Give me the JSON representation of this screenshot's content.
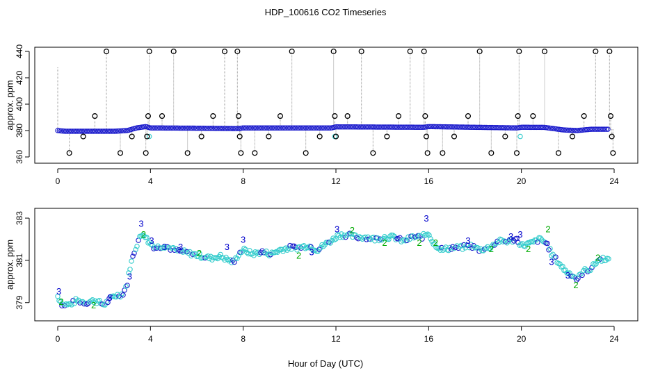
{
  "figure": {
    "title": "HDP_100616  CO2 Timeseries",
    "xlabel": "Hour of Day (UTC)"
  },
  "colors": {
    "flagged": "#000000",
    "main": "#1a1acc",
    "alt": "#33cccc",
    "label3": "#0000cc",
    "label2": "#00aa00",
    "connector": "#999999"
  },
  "chart_data": [
    {
      "type": "scatter",
      "ylabel": "approx. ppm",
      "xlim": [
        0,
        24
      ],
      "ylim": [
        360,
        440
      ],
      "xticks": [
        0,
        4,
        8,
        12,
        16,
        20,
        24
      ],
      "yticks": [
        360,
        380,
        400,
        420,
        440
      ],
      "xtick_labels": [
        "0",
        "4",
        "8",
        "12",
        "16",
        "20",
        "24"
      ],
      "ytick_labels": [
        "360",
        "380",
        "400",
        "420",
        "440"
      ],
      "grid": false,
      "baseline": {
        "description_points_hour_ppm": [
          [
            0.0,
            380
          ],
          [
            0.3,
            379.5
          ],
          [
            2.5,
            379.5
          ],
          [
            3.0,
            380
          ],
          [
            3.4,
            382
          ],
          [
            3.8,
            383
          ],
          [
            4.0,
            382
          ],
          [
            6.0,
            381.8
          ],
          [
            7.8,
            381.5
          ],
          [
            8.0,
            382
          ],
          [
            11.8,
            382
          ],
          [
            12.0,
            382.8
          ],
          [
            15.8,
            382.5
          ],
          [
            16.0,
            383
          ],
          [
            19.8,
            382
          ],
          [
            20.0,
            382.5
          ],
          [
            21.0,
            382.4
          ],
          [
            21.8,
            380.5
          ],
          [
            22.4,
            380
          ],
          [
            23.0,
            381
          ],
          [
            23.8,
            381
          ]
        ]
      },
      "flagged_points": [
        {
          "x": 0.5,
          "y": 363
        },
        {
          "x": 1.1,
          "y": 375.5
        },
        {
          "x": 1.6,
          "y": 391
        },
        {
          "x": 2.1,
          "y": 440
        },
        {
          "x": 2.7,
          "y": 363
        },
        {
          "x": 3.2,
          "y": 375.5
        },
        {
          "x": 3.8,
          "y": 363
        },
        {
          "x": 3.85,
          "y": 375.5
        },
        {
          "x": 3.9,
          "y": 391
        },
        {
          "x": 3.95,
          "y": 440
        },
        {
          "x": 4.5,
          "y": 391
        },
        {
          "x": 5.0,
          "y": 440
        },
        {
          "x": 5.6,
          "y": 363
        },
        {
          "x": 6.2,
          "y": 375.5
        },
        {
          "x": 6.7,
          "y": 391
        },
        {
          "x": 7.2,
          "y": 440
        },
        {
          "x": 7.75,
          "y": 440
        },
        {
          "x": 7.8,
          "y": 391
        },
        {
          "x": 7.85,
          "y": 375.5
        },
        {
          "x": 7.9,
          "y": 363
        },
        {
          "x": 8.5,
          "y": 363
        },
        {
          "x": 9.1,
          "y": 375.5
        },
        {
          "x": 9.6,
          "y": 391
        },
        {
          "x": 10.1,
          "y": 440
        },
        {
          "x": 10.7,
          "y": 363
        },
        {
          "x": 11.3,
          "y": 375.5
        },
        {
          "x": 11.9,
          "y": 440
        },
        {
          "x": 11.95,
          "y": 391
        },
        {
          "x": 12.0,
          "y": 375.5
        },
        {
          "x": 12.5,
          "y": 391
        },
        {
          "x": 13.1,
          "y": 440
        },
        {
          "x": 13.6,
          "y": 363
        },
        {
          "x": 14.2,
          "y": 375.5
        },
        {
          "x": 14.7,
          "y": 391
        },
        {
          "x": 15.2,
          "y": 440
        },
        {
          "x": 15.8,
          "y": 440
        },
        {
          "x": 15.85,
          "y": 391
        },
        {
          "x": 15.9,
          "y": 375.5
        },
        {
          "x": 15.95,
          "y": 363
        },
        {
          "x": 16.6,
          "y": 363
        },
        {
          "x": 17.1,
          "y": 375.5
        },
        {
          "x": 17.7,
          "y": 391
        },
        {
          "x": 18.2,
          "y": 440
        },
        {
          "x": 18.7,
          "y": 363
        },
        {
          "x": 19.3,
          "y": 375.5
        },
        {
          "x": 19.8,
          "y": 363
        },
        {
          "x": 19.85,
          "y": 391
        },
        {
          "x": 19.9,
          "y": 440
        },
        {
          "x": 20.5,
          "y": 391
        },
        {
          "x": 21.0,
          "y": 440
        },
        {
          "x": 21.6,
          "y": 363
        },
        {
          "x": 22.2,
          "y": 375.5
        },
        {
          "x": 22.7,
          "y": 391
        },
        {
          "x": 23.2,
          "y": 440
        },
        {
          "x": 23.8,
          "y": 440
        },
        {
          "x": 23.85,
          "y": 391
        },
        {
          "x": 23.9,
          "y": 375.5
        },
        {
          "x": 23.95,
          "y": 363
        }
      ]
    },
    {
      "type": "scatter",
      "ylabel": "approx. ppm",
      "xlim": [
        0,
        24
      ],
      "ylim": [
        378.4,
        383.2
      ],
      "xticks": [
        0,
        4,
        8,
        12,
        16,
        20,
        24
      ],
      "yticks": [
        379,
        381,
        383
      ],
      "xtick_labels": [
        "0",
        "4",
        "8",
        "12",
        "16",
        "20",
        "24"
      ],
      "ytick_labels": [
        "379",
        "381",
        "383"
      ],
      "grid": false,
      "series_points_hour_ppm": [
        [
          0.0,
          379.3
        ],
        [
          0.1,
          379.1
        ],
        [
          0.2,
          378.9
        ],
        [
          0.5,
          378.9
        ],
        [
          0.8,
          379.1
        ],
        [
          1.2,
          379.0
        ],
        [
          1.6,
          379.1
        ],
        [
          2.0,
          378.9
        ],
        [
          2.4,
          379.3
        ],
        [
          2.8,
          379.4
        ],
        [
          3.0,
          379.9
        ],
        [
          3.1,
          380.6
        ],
        [
          3.3,
          381.4
        ],
        [
          3.5,
          382.0
        ],
        [
          3.7,
          382.3
        ],
        [
          3.9,
          381.9
        ],
        [
          4.2,
          381.6
        ],
        [
          4.6,
          381.7
        ],
        [
          5.0,
          381.5
        ],
        [
          5.4,
          381.4
        ],
        [
          5.8,
          381.3
        ],
        [
          6.2,
          381.2
        ],
        [
          6.6,
          381.1
        ],
        [
          7.0,
          381.2
        ],
        [
          7.4,
          381.0
        ],
        [
          7.6,
          380.9
        ],
        [
          7.8,
          381.3
        ],
        [
          8.0,
          381.5
        ],
        [
          8.4,
          381.3
        ],
        [
          8.8,
          381.4
        ],
        [
          9.2,
          381.3
        ],
        [
          9.6,
          381.5
        ],
        [
          10.0,
          381.6
        ],
        [
          10.4,
          381.6
        ],
        [
          10.8,
          381.7
        ],
        [
          11.2,
          381.5
        ],
        [
          11.6,
          381.8
        ],
        [
          11.9,
          382.0
        ],
        [
          12.1,
          382.2
        ],
        [
          12.5,
          382.2
        ],
        [
          12.9,
          382.1
        ],
        [
          13.3,
          382.1
        ],
        [
          13.7,
          382.0
        ],
        [
          14.1,
          382.1
        ],
        [
          14.5,
          382.1
        ],
        [
          14.9,
          381.9
        ],
        [
          15.3,
          382.1
        ],
        [
          15.7,
          382.1
        ],
        [
          16.0,
          382.3
        ],
        [
          16.2,
          381.8
        ],
        [
          16.6,
          381.5
        ],
        [
          17.0,
          381.6
        ],
        [
          17.4,
          381.6
        ],
        [
          17.8,
          381.7
        ],
        [
          18.2,
          381.5
        ],
        [
          18.6,
          381.6
        ],
        [
          19.0,
          381.9
        ],
        [
          19.4,
          381.9
        ],
        [
          19.8,
          382.0
        ],
        [
          20.0,
          381.7
        ],
        [
          20.4,
          381.8
        ],
        [
          20.8,
          382.0
        ],
        [
          21.1,
          381.8
        ],
        [
          21.3,
          381.3
        ],
        [
          21.6,
          380.9
        ],
        [
          21.9,
          380.5
        ],
        [
          22.2,
          380.3
        ],
        [
          22.4,
          380.1
        ],
        [
          22.7,
          380.5
        ],
        [
          23.0,
          380.6
        ],
        [
          23.3,
          381.0
        ],
        [
          23.6,
          381.1
        ],
        [
          23.8,
          381.0
        ]
      ],
      "label_marks": [
        {
          "x": 0.05,
          "y": 379.5,
          "text": "3",
          "color_key": "label3"
        },
        {
          "x": 0.15,
          "y": 379.0,
          "text": "2",
          "color_key": "label2"
        },
        {
          "x": 1.55,
          "y": 378.85,
          "text": "2",
          "color_key": "label2"
        },
        {
          "x": 2.25,
          "y": 379.2,
          "text": "3",
          "color_key": "label3"
        },
        {
          "x": 3.1,
          "y": 380.2,
          "text": "3",
          "color_key": "label3"
        },
        {
          "x": 3.6,
          "y": 382.7,
          "text": "3",
          "color_key": "label3"
        },
        {
          "x": 3.7,
          "y": 382.2,
          "text": "2",
          "color_key": "label2"
        },
        {
          "x": 4.05,
          "y": 381.9,
          "text": "3",
          "color_key": "label3"
        },
        {
          "x": 4.6,
          "y": 381.6,
          "text": "3",
          "color_key": "label3"
        },
        {
          "x": 5.3,
          "y": 381.6,
          "text": "3",
          "color_key": "label3"
        },
        {
          "x": 6.1,
          "y": 381.3,
          "text": "2",
          "color_key": "label2"
        },
        {
          "x": 7.3,
          "y": 381.6,
          "text": "3",
          "color_key": "label3"
        },
        {
          "x": 8.0,
          "y": 381.95,
          "text": "3",
          "color_key": "label3"
        },
        {
          "x": 10.4,
          "y": 381.2,
          "text": "2",
          "color_key": "label2"
        },
        {
          "x": 10.95,
          "y": 381.35,
          "text": "3",
          "color_key": "label3"
        },
        {
          "x": 12.05,
          "y": 382.45,
          "text": "3",
          "color_key": "label3"
        },
        {
          "x": 12.7,
          "y": 382.4,
          "text": "2",
          "color_key": "label2"
        },
        {
          "x": 14.1,
          "y": 381.8,
          "text": "2",
          "color_key": "label2"
        },
        {
          "x": 15.9,
          "y": 382.95,
          "text": "3",
          "color_key": "label3"
        },
        {
          "x": 15.6,
          "y": 381.8,
          "text": "2",
          "color_key": "label2"
        },
        {
          "x": 16.3,
          "y": 381.8,
          "text": "2",
          "color_key": "label2"
        },
        {
          "x": 17.7,
          "y": 381.9,
          "text": "3",
          "color_key": "label3"
        },
        {
          "x": 18.7,
          "y": 381.5,
          "text": "2",
          "color_key": "label2"
        },
        {
          "x": 19.55,
          "y": 382.1,
          "text": "3",
          "color_key": "label3"
        },
        {
          "x": 19.95,
          "y": 382.2,
          "text": "3",
          "color_key": "label3"
        },
        {
          "x": 20.3,
          "y": 381.5,
          "text": "2",
          "color_key": "label2"
        },
        {
          "x": 21.15,
          "y": 382.45,
          "text": "2",
          "color_key": "label2"
        },
        {
          "x": 21.3,
          "y": 380.9,
          "text": "3",
          "color_key": "label3"
        },
        {
          "x": 22.0,
          "y": 380.25,
          "text": "3",
          "color_key": "label3"
        },
        {
          "x": 22.35,
          "y": 379.8,
          "text": "2",
          "color_key": "label2"
        },
        {
          "x": 23.3,
          "y": 381.1,
          "text": "2",
          "color_key": "label2"
        }
      ]
    }
  ]
}
